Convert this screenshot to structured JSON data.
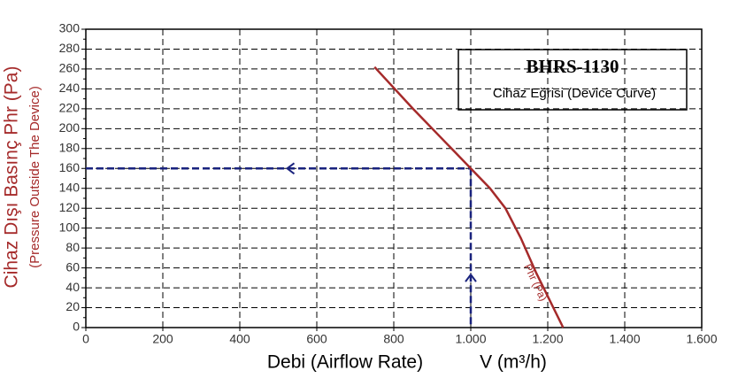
{
  "chart_data": {
    "type": "line",
    "title": "BHRS-1130",
    "subtitle": "Cihaz Eğrisi (Device Curve)",
    "x_label": "Debi (Airflow Rate)",
    "x_unit_label": "V (m³/h)",
    "y_label": "Cihaz Dışı Basınç Phr (Pa)",
    "y_sublabel": "(Pressure Outside The Device)",
    "x": [
      750,
      850,
      950,
      1000,
      1050,
      1090,
      1130,
      1170,
      1240
    ],
    "series": [
      {
        "name": "Phr (Pa)",
        "color": "#a52a2a",
        "values": [
          262,
          220,
          180,
          160,
          140,
          120,
          90,
          55,
          0
        ]
      }
    ],
    "guide": {
      "x": 1000,
      "y": 160,
      "color": "#1a237e"
    },
    "xlim": [
      0,
      1600
    ],
    "xticks": [
      0,
      200,
      400,
      600,
      800,
      {
        "value": 1000,
        "label": "1.000"
      },
      {
        "value": 1200,
        "label": "1.200"
      },
      {
        "value": 1400,
        "label": "1.400"
      },
      {
        "value": 1600,
        "label": "1.600"
      }
    ],
    "ylim": [
      0,
      300
    ],
    "yticks": [
      0,
      20,
      40,
      60,
      80,
      100,
      120,
      140,
      160,
      180,
      200,
      220,
      240,
      260,
      280,
      300
    ],
    "grid": true
  }
}
